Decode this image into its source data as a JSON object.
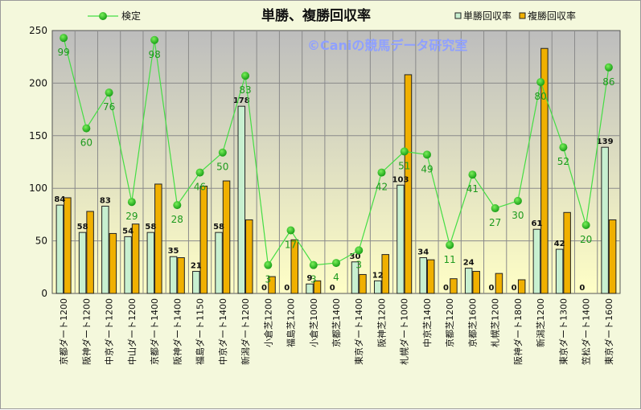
{
  "chart_data": {
    "type": "bar",
    "title": "単勝、複勝回収率",
    "watermark": "©Caniの競馬データ研究室",
    "ylim": [
      0,
      250
    ],
    "yticks": [
      0,
      50,
      100,
      150,
      200,
      250
    ],
    "grid": true,
    "legend_placement": "top",
    "categories": [
      "京都ダート1200",
      "阪神ダート1200",
      "中京ダート1200",
      "中山ダート1200",
      "京都ダート1400",
      "阪神ダート1400",
      "福島ダート1150",
      "中京ダート1400",
      "新潟ダート1200",
      "小倉芝1200",
      "福島芝1200",
      "小倉芝1000",
      "京都芝1400",
      "東京ダート1400",
      "阪神芝1200",
      "札幌ダート1000",
      "中京芝1400",
      "京都芝1200",
      "京都芝1600",
      "札幌芝1200",
      "阪神ダート1800",
      "新潟芝1200",
      "東京ダート1300",
      "笠松ダート1400",
      "東京ダート1600"
    ],
    "series": [
      {
        "name": "単勝回収率",
        "kind": "bar",
        "color": "#c8f0d0",
        "values": [
          84,
          58,
          83,
          54,
          58,
          35,
          21,
          58,
          178,
          0,
          0,
          9,
          0,
          30,
          12,
          103,
          34,
          0,
          24,
          0,
          0,
          61,
          42,
          0,
          139
        ]
      },
      {
        "name": "複勝回収率",
        "kind": "bar",
        "color": "#f0b000",
        "values": [
          91,
          78,
          57,
          66,
          104,
          34,
          102,
          107,
          70,
          16,
          51,
          12,
          0,
          18,
          37,
          208,
          32,
          14,
          21,
          19,
          13,
          233,
          77,
          0,
          70
        ]
      },
      {
        "name": "検定",
        "kind": "line",
        "color": "#11aa11",
        "values": [
          243,
          157,
          191,
          87,
          241,
          84,
          115,
          134,
          207,
          27,
          60,
          27,
          29,
          41,
          115,
          135,
          132,
          46,
          113,
          81,
          88,
          201,
          139,
          65,
          215
        ],
        "labels": [
          99,
          60,
          76,
          29,
          98,
          28,
          46,
          50,
          83,
          3,
          17,
          3,
          4,
          3,
          42,
          51,
          49,
          11,
          41,
          27,
          30,
          80,
          52,
          20,
          86
        ]
      }
    ],
    "bar_labels": [
      "84",
      "58",
      "83",
      "54",
      "58",
      "35",
      "21",
      "58",
      "178",
      "0",
      "0",
      "9",
      "0",
      "30",
      "12",
      "103",
      "34",
      "0",
      "24",
      "0",
      "0",
      "61",
      "42",
      "0",
      "139"
    ]
  },
  "legend": {
    "line": "検定",
    "bar1": "単勝回収率",
    "bar2": "複勝回収率"
  },
  "colors": {
    "bar1": "#c8f0d0",
    "bar2": "#f0b000",
    "line": "#44dd44",
    "marker": "#11aa11"
  }
}
